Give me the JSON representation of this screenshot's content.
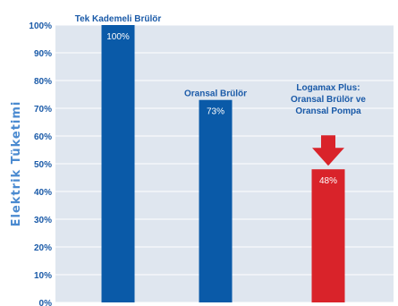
{
  "chart_data": {
    "type": "bar",
    "ylabel": "Elektrik Tüketimi",
    "ylim": [
      0,
      100
    ],
    "yticks": [
      "0%",
      "10%",
      "20%",
      "30%",
      "40%",
      "50%",
      "60%",
      "70%",
      "80%",
      "90%",
      "100%"
    ],
    "gridlines": true,
    "categories": [
      [
        "Tek Kademeli Brülör"
      ],
      [
        "Oransal Brülör"
      ],
      [
        "Logamax Plus:",
        "Oransal Brülör ve",
        "Oransal Pompa"
      ]
    ],
    "values": [
      100,
      73,
      48
    ],
    "value_labels": [
      "100%",
      "73%",
      "48%"
    ],
    "colors": {
      "bar_default": "#0a5aa8",
      "bar_highlight": "#d9232a",
      "label_blue": "#1a5aa8",
      "background": "#dfe6ef",
      "grid": "#ffffff",
      "axis_text": "#1a5aa8",
      "ylabel_text": "#4a8ad0"
    },
    "highlight_index": 2,
    "annotation": "red-down-arrow"
  }
}
